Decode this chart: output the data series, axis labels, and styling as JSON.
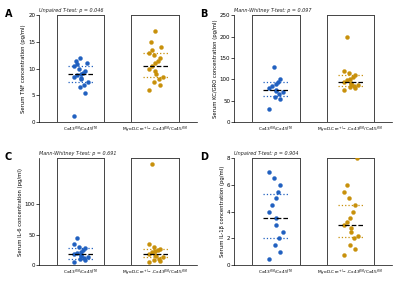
{
  "panel_A": {
    "title": "Unpaired T-test: p = 0.046",
    "ylabel": "Serum TNF concentration (pg/ml)",
    "ylim": [
      0,
      20
    ],
    "yticks": [
      0,
      5,
      10,
      15,
      20
    ],
    "group1_data": [
      1.2,
      5.5,
      6.5,
      7.0,
      7.5,
      8.0,
      8.2,
      8.5,
      8.8,
      9.0,
      9.2,
      9.5,
      10.0,
      10.5,
      10.8,
      11.0,
      11.5,
      12.0
    ],
    "group2_data": [
      6.0,
      7.0,
      7.5,
      8.0,
      8.5,
      9.0,
      9.5,
      10.0,
      10.5,
      11.0,
      11.5,
      12.0,
      12.5,
      13.0,
      13.5,
      14.0,
      15.0,
      17.0
    ],
    "group1_median": 9.0,
    "group2_median": 10.5,
    "group1_q1": 7.5,
    "group1_q3": 10.5,
    "group2_q1": 8.5,
    "group2_q3": 13.0
  },
  "panel_B": {
    "title": "Mann-Whitney T-test: p = 0.097",
    "ylabel": "Serum KC/GRO concentration (pg/ml)",
    "ylim": [
      0,
      250
    ],
    "yticks": [
      0,
      50,
      100,
      150,
      200,
      250
    ],
    "group1_data": [
      30,
      55,
      60,
      65,
      70,
      72,
      75,
      80,
      85,
      90,
      95,
      100,
      130
    ],
    "group2_data": [
      75,
      80,
      82,
      85,
      88,
      90,
      92,
      95,
      98,
      100,
      105,
      110,
      115,
      120,
      200
    ],
    "group1_median": 75,
    "group2_median": 93,
    "group1_q1": 62,
    "group1_q3": 95,
    "group2_q1": 85,
    "group2_q3": 110
  },
  "panel_C": {
    "title": "Mann-Whitney T-test: p = 0.691",
    "ylabel": "Serum IL-6 concentration (pg/ml)",
    "ylim": [
      0,
      175
    ],
    "yticks": [
      0,
      50,
      100
    ],
    "group1_data": [
      5,
      8,
      10,
      12,
      14,
      15,
      16,
      18,
      20,
      22,
      25,
      28,
      30,
      35,
      45
    ],
    "group2_data": [
      5,
      7,
      9,
      11,
      13,
      15,
      17,
      19,
      21,
      23,
      25,
      27,
      30,
      35,
      165
    ],
    "group1_median": 18,
    "group2_median": 19,
    "group1_q1": 11,
    "group1_q3": 28,
    "group2_q1": 13,
    "group2_q3": 27
  },
  "panel_D": {
    "title": "Unpaired T-test: p = 0.904",
    "ylabel": "Serum IL-1β concentration (pg/ml)",
    "ylim": [
      0,
      8
    ],
    "yticks": [
      0,
      2,
      4,
      6,
      8
    ],
    "group1_data": [
      0.5,
      1.0,
      1.5,
      2.0,
      2.5,
      3.0,
      3.5,
      4.0,
      4.5,
      5.0,
      5.5,
      6.0,
      6.5,
      7.0
    ],
    "group2_data": [
      0.8,
      1.2,
      1.5,
      2.0,
      2.2,
      2.5,
      2.8,
      3.0,
      3.2,
      3.5,
      4.0,
      4.5,
      5.0,
      5.5,
      6.0,
      8.0
    ],
    "group1_median": 3.5,
    "group2_median": 3.0,
    "group1_q1": 2.0,
    "group1_q3": 5.3,
    "group2_q1": 2.1,
    "group2_q3": 4.5
  },
  "group1_label": "Cx43$^{fl/fl}$/Cx45$^{fl/fl}$",
  "group2_label": "MyoD-Cre$^{+/-}$-Cx43$^{fl/fl}$/Cx45$^{fl/fl}$",
  "color_group1": "#2060c0",
  "color_group2": "#c8900a",
  "bg_color": "#ffffff",
  "violin_color": "#444444",
  "violin_lw": 0.7
}
